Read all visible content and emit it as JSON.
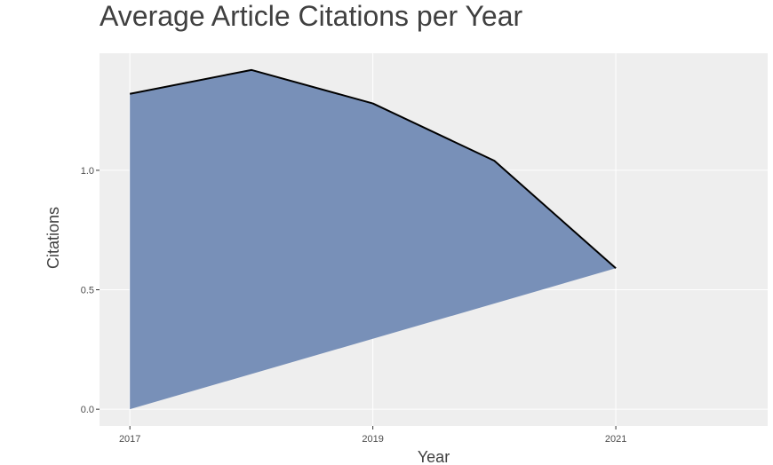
{
  "chart_data": {
    "type": "area",
    "title": "Average Article Citations per Year",
    "xlabel": "Year",
    "ylabel": "Citations",
    "x": [
      2017,
      2018,
      2019,
      2020,
      2021
    ],
    "series": [
      {
        "values": [
          1.32,
          1.42,
          1.28,
          1.04,
          0.59
        ]
      }
    ],
    "x_ticks": [
      "2017",
      "2019",
      "2021"
    ],
    "y_ticks": [
      "0.0",
      "0.5",
      "1.0"
    ],
    "xlim": [
      2016.75,
      2022.25
    ],
    "ylim": [
      -0.07,
      1.49
    ],
    "grid": true,
    "colors": {
      "fill": "#7890b8",
      "line": "#000000",
      "panel": "#eeeeee",
      "grid": "#ffffff",
      "text": "#404040"
    }
  }
}
